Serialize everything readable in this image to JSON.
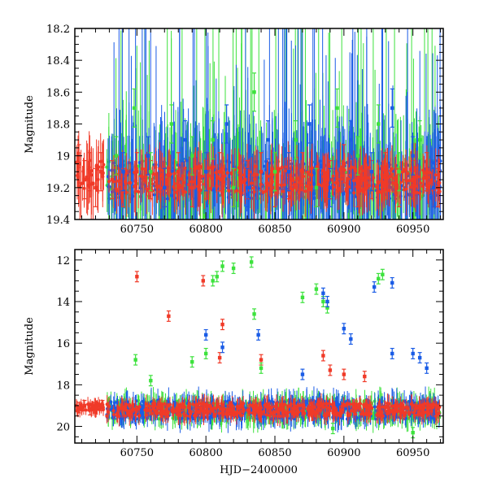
{
  "chart_data": [
    {
      "type": "scatter",
      "title": "",
      "xlabel": "",
      "ylabel": "Magnitude",
      "xlim": [
        60705,
        60972
      ],
      "ylim": [
        19.4,
        18.2
      ],
      "y_inverted": true,
      "xticks": [
        60750,
        60800,
        60850,
        60900,
        60950
      ],
      "xtick_labels": [
        "60750",
        "60800",
        "60850",
        "60900",
        "60950"
      ],
      "yticks": [
        18.2,
        18.4,
        18.6,
        18.8,
        19,
        19.2,
        19.4
      ],
      "ytick_labels": [
        "18.2",
        "18.4",
        "18.6",
        "18.8",
        "19",
        "19.2",
        "19.4"
      ],
      "series_colors": {
        "red": "#f03a28",
        "green": "#3de23d",
        "blue": "#1a5ce6"
      },
      "legend": "none",
      "grid": false,
      "series": [
        {
          "name": "red",
          "points": [
            [
              60708,
              19.05
            ],
            [
              60712,
              19.15
            ],
            [
              60716,
              19.1
            ],
            [
              60720,
              19.2
            ],
            [
              60724,
              19.1
            ],
            [
              60732,
              19.15
            ],
            [
              60740,
              19.2
            ],
            [
              60750,
              19.1
            ],
            [
              60760,
              19.15
            ],
            [
              60770,
              19.2
            ],
            [
              60780,
              19.1
            ],
            [
              60790,
              19.2
            ],
            [
              60800,
              19.15
            ],
            [
              60810,
              19.1
            ],
            [
              60820,
              19.2
            ],
            [
              60830,
              19.15
            ],
            [
              60840,
              19.1
            ],
            [
              60850,
              19.2
            ],
            [
              60860,
              19.15
            ],
            [
              60870,
              19.1
            ],
            [
              60880,
              19.2
            ],
            [
              60890,
              19.15
            ],
            [
              60900,
              19.05
            ],
            [
              60910,
              19.2
            ],
            [
              60920,
              19.15
            ],
            [
              60930,
              19.1
            ],
            [
              60940,
              19.2
            ],
            [
              60950,
              19.15
            ],
            [
              60960,
              19.1
            ],
            [
              60968,
              19.2
            ]
          ]
        },
        {
          "name": "green",
          "points": [
            [
              60735,
              19.0
            ],
            [
              60748,
              18.7
            ],
            [
              60760,
              19.1
            ],
            [
              60775,
              18.8
            ],
            [
              60790,
              19.0
            ],
            [
              60805,
              18.9
            ],
            [
              60820,
              19.2
            ],
            [
              60835,
              18.6
            ],
            [
              60850,
              19.1
            ],
            [
              60865,
              18.9
            ],
            [
              60880,
              19.2
            ],
            [
              60895,
              18.7
            ],
            [
              60910,
              19.0
            ],
            [
              60925,
              18.8
            ],
            [
              60940,
              19.1
            ],
            [
              60955,
              18.9
            ]
          ]
        },
        {
          "name": "blue",
          "points": [
            [
              60740,
              19.1
            ],
            [
              60758,
              19.0
            ],
            [
              60770,
              19.2
            ],
            [
              60785,
              18.9
            ],
            [
              60800,
              19.1
            ],
            [
              60815,
              18.8
            ],
            [
              60830,
              19.2
            ],
            [
              60845,
              18.9
            ],
            [
              60860,
              19.1
            ],
            [
              60875,
              18.8
            ],
            [
              60890,
              19.2
            ],
            [
              60905,
              18.9
            ],
            [
              60920,
              19.1
            ],
            [
              60935,
              18.7
            ],
            [
              60950,
              19.0
            ],
            [
              60965,
              19.2
            ]
          ]
        }
      ]
    },
    {
      "type": "scatter",
      "title": "",
      "xlabel": "HJD−2400000",
      "ylabel": "Magnitude",
      "xlim": [
        60705,
        60972
      ],
      "ylim": [
        20.8,
        11.5
      ],
      "y_inverted": true,
      "xticks": [
        60750,
        60800,
        60850,
        60900,
        60950
      ],
      "xtick_labels": [
        "60750",
        "60800",
        "60850",
        "60900",
        "60950"
      ],
      "yticks": [
        12,
        14,
        16,
        18,
        20
      ],
      "ytick_labels": [
        "12",
        "14",
        "16",
        "18",
        "20"
      ],
      "series_colors": {
        "red": "#f03a28",
        "green": "#3de23d",
        "blue": "#1a5ce6"
      },
      "legend": "none",
      "grid": false,
      "series": [
        {
          "name": "red",
          "points": [
            [
              60708,
              19.1
            ],
            [
              60712,
              19.0
            ],
            [
              60716,
              19.2
            ],
            [
              60720,
              19.1
            ],
            [
              60725,
              19.0
            ],
            [
              60750,
              12.8
            ],
            [
              60773,
              14.7
            ],
            [
              60798,
              13.0
            ],
            [
              60812,
              15.1
            ],
            [
              60810,
              16.7
            ],
            [
              60840,
              16.8
            ],
            [
              60885,
              16.6
            ],
            [
              60890,
              17.3
            ],
            [
              60900,
              17.5
            ],
            [
              60915,
              17.6
            ]
          ]
        },
        {
          "name": "green",
          "points": [
            [
              60749,
              16.8
            ],
            [
              60760,
              17.8
            ],
            [
              60790,
              16.9
            ],
            [
              60800,
              16.5
            ],
            [
              60805,
              13.0
            ],
            [
              60808,
              12.8
            ],
            [
              60812,
              12.3
            ],
            [
              60820,
              12.4
            ],
            [
              60833,
              12.1
            ],
            [
              60835,
              14.6
            ],
            [
              60840,
              17.2
            ],
            [
              60870,
              13.8
            ],
            [
              60880,
              13.4
            ],
            [
              60885,
              14.0
            ],
            [
              60888,
              14.3
            ],
            [
              60925,
              12.9
            ],
            [
              60928,
              12.7
            ],
            [
              60892,
              20.1
            ],
            [
              60950,
              20.3
            ]
          ]
        },
        {
          "name": "blue",
          "points": [
            [
              60800,
              15.6
            ],
            [
              60812,
              16.2
            ],
            [
              60838,
              15.6
            ],
            [
              60870,
              17.5
            ],
            [
              60885,
              13.6
            ],
            [
              60888,
              14.0
            ],
            [
              60900,
              15.3
            ],
            [
              60905,
              15.8
            ],
            [
              60922,
              13.3
            ],
            [
              60935,
              13.1
            ],
            [
              60935,
              16.5
            ],
            [
              60950,
              16.5
            ],
            [
              60955,
              16.7
            ],
            [
              60960,
              17.2
            ]
          ]
        }
      ]
    }
  ]
}
